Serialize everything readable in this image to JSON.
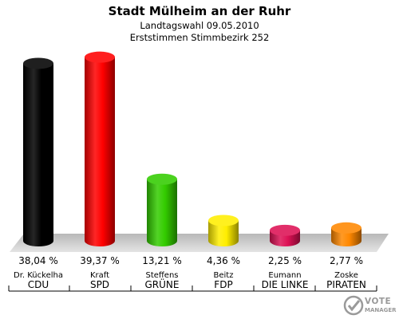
{
  "header": {
    "title": "Stadt Mülheim an der Ruhr",
    "subtitle1": "Landtagswahl 09.05.2010",
    "subtitle2": "Erststimmen Stimmbezirk 252"
  },
  "watermark": {
    "line1": "VOTE",
    "line2": "MANAGER"
  },
  "chart_data": {
    "type": "bar",
    "title": "Stadt Mülheim an der Ruhr",
    "ylim": [
      0,
      40
    ],
    "categories": [
      "CDU",
      "SPD",
      "GRÜNE",
      "FDP",
      "DIE LINKE",
      "PIRATEN"
    ],
    "candidates": [
      "Dr. Kückelha",
      "Kraft",
      "Steffens",
      "Beitz",
      "Eumann",
      "Zoske"
    ],
    "values": [
      38.04,
      39.37,
      13.21,
      4.36,
      2.25,
      2.77
    ],
    "value_labels": [
      "38,04 %",
      "39,37 %",
      "13,21 %",
      "4,36 %",
      "2,25 %",
      "2,77 %"
    ],
    "colors": [
      "#000000",
      "#ff0000",
      "#33cc00",
      "#ffee00",
      "#dd1155",
      "#ff8800"
    ]
  }
}
